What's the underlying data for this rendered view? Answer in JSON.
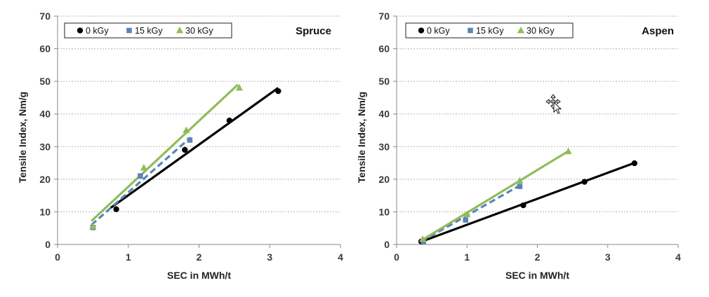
{
  "chart_data": [
    {
      "type": "scatter",
      "title": "Spruce",
      "xlabel": "SEC in MWh/t",
      "ylabel": "Tensile Index, Nm/g",
      "xlim": [
        0,
        4
      ],
      "ylim": [
        0,
        70
      ],
      "xticks": [
        "0",
        "1",
        "2",
        "3",
        "4"
      ],
      "yticks": [
        "0",
        "10",
        "20",
        "30",
        "40",
        "50",
        "60",
        "70"
      ],
      "grid": "horizontal dotted",
      "legend_position": "top",
      "series": [
        {
          "name": "0 kGy",
          "color": "#000000",
          "marker": "circle",
          "line": "solid",
          "points": [
            [
              0.83,
              10.8
            ],
            [
              1.8,
              29.0
            ],
            [
              2.43,
              38.0
            ],
            [
              3.12,
              47.0
            ]
          ],
          "fit": [
            [
              0.75,
              11.2
            ],
            [
              3.12,
              48.0
            ]
          ]
        },
        {
          "name": "15 kGy",
          "color": "#5b85b8",
          "marker": "square",
          "line": "dashed",
          "points": [
            [
              0.5,
              5.2
            ],
            [
              1.17,
              21.0
            ],
            [
              1.87,
              32.0
            ]
          ],
          "fit": [
            [
              0.48,
              6.0
            ],
            [
              1.88,
              32.8
            ]
          ]
        },
        {
          "name": "30 kGy",
          "color": "#92bb5a",
          "marker": "triangle",
          "line": "solid",
          "points": [
            [
              0.5,
              5.5
            ],
            [
              1.22,
              23.5
            ],
            [
              1.82,
              35.0
            ],
            [
              2.57,
              48.0
            ]
          ],
          "fit": [
            [
              0.48,
              7.2
            ],
            [
              2.55,
              49.0
            ]
          ]
        }
      ]
    },
    {
      "type": "scatter",
      "title": "Aspen",
      "xlabel": "SEC in MWh/t",
      "ylabel": "Tensile Index, Nm/g",
      "xlim": [
        0,
        4
      ],
      "ylim": [
        0,
        70
      ],
      "xticks": [
        "0",
        "1",
        "2",
        "3",
        "4"
      ],
      "yticks": [
        "0",
        "10",
        "20",
        "30",
        "40",
        "50",
        "60",
        "70"
      ],
      "grid": "horizontal dotted",
      "legend_position": "top",
      "series": [
        {
          "name": "0 kGy",
          "color": "#000000",
          "marker": "circle",
          "line": "solid",
          "points": [
            [
              0.35,
              0.9
            ],
            [
              1.8,
              12.0
            ],
            [
              2.67,
              19.2
            ],
            [
              3.38,
              24.9
            ]
          ],
          "fit": [
            [
              0.33,
              0.7
            ],
            [
              3.38,
              25.0
            ]
          ]
        },
        {
          "name": "15 kGy",
          "color": "#5b85b8",
          "marker": "square",
          "line": "dashed",
          "points": [
            [
              0.38,
              0.9
            ],
            [
              0.98,
              7.5
            ],
            [
              1.75,
              17.8
            ]
          ],
          "fit": [
            [
              0.35,
              0.9
            ],
            [
              1.76,
              18.2
            ]
          ]
        },
        {
          "name": "30 kGy",
          "color": "#92bb5a",
          "marker": "triangle",
          "line": "solid",
          "points": [
            [
              0.37,
              1.6
            ],
            [
              1.0,
              9.2
            ],
            [
              1.75,
              19.5
            ],
            [
              2.44,
              28.5
            ]
          ],
          "fit": [
            [
              0.35,
              1.2
            ],
            [
              2.44,
              28.6
            ]
          ]
        }
      ]
    }
  ]
}
